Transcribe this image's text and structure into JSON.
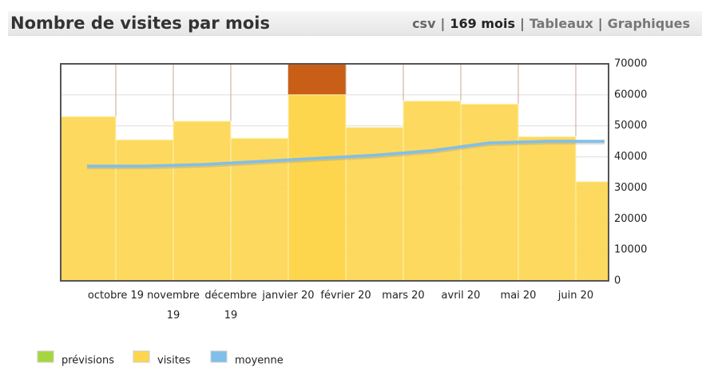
{
  "header": {
    "title": "Nombre de visites par mois",
    "links": [
      "csv",
      "169 mois",
      "Tableaux",
      "Graphiques"
    ],
    "separator": "|"
  },
  "chart_data": {
    "type": "bar",
    "categories": [
      null,
      "octobre 19",
      "novembre 19",
      "décembre 19",
      "janvier 20",
      "février 20",
      "mars 20",
      "avril 20",
      "mai 20",
      "juin 20"
    ],
    "series": [
      {
        "name": "prévisions",
        "color": "#a6d63e",
        "values": [
          null,
          null,
          null,
          null,
          null,
          null,
          null,
          null,
          null,
          null
        ]
      },
      {
        "name": "visites",
        "color": "#fdd64e",
        "values": [
          53000,
          45500,
          51500,
          46000,
          60000,
          49500,
          58000,
          57000,
          46500,
          32000
        ]
      },
      {
        "name": "moyenne",
        "color": "#80bfea",
        "values": [
          37000,
          37000,
          37500,
          38500,
          39500,
          40500,
          42000,
          44500,
          45000,
          45000
        ]
      }
    ],
    "highlight": 4,
    "highlight_color": "#c95f17",
    "ylim": [
      0,
      70000
    ],
    "yticks": [
      0,
      10000,
      20000,
      30000,
      40000,
      50000,
      60000,
      70000
    ],
    "grid": true,
    "legend": "bottom-left"
  }
}
